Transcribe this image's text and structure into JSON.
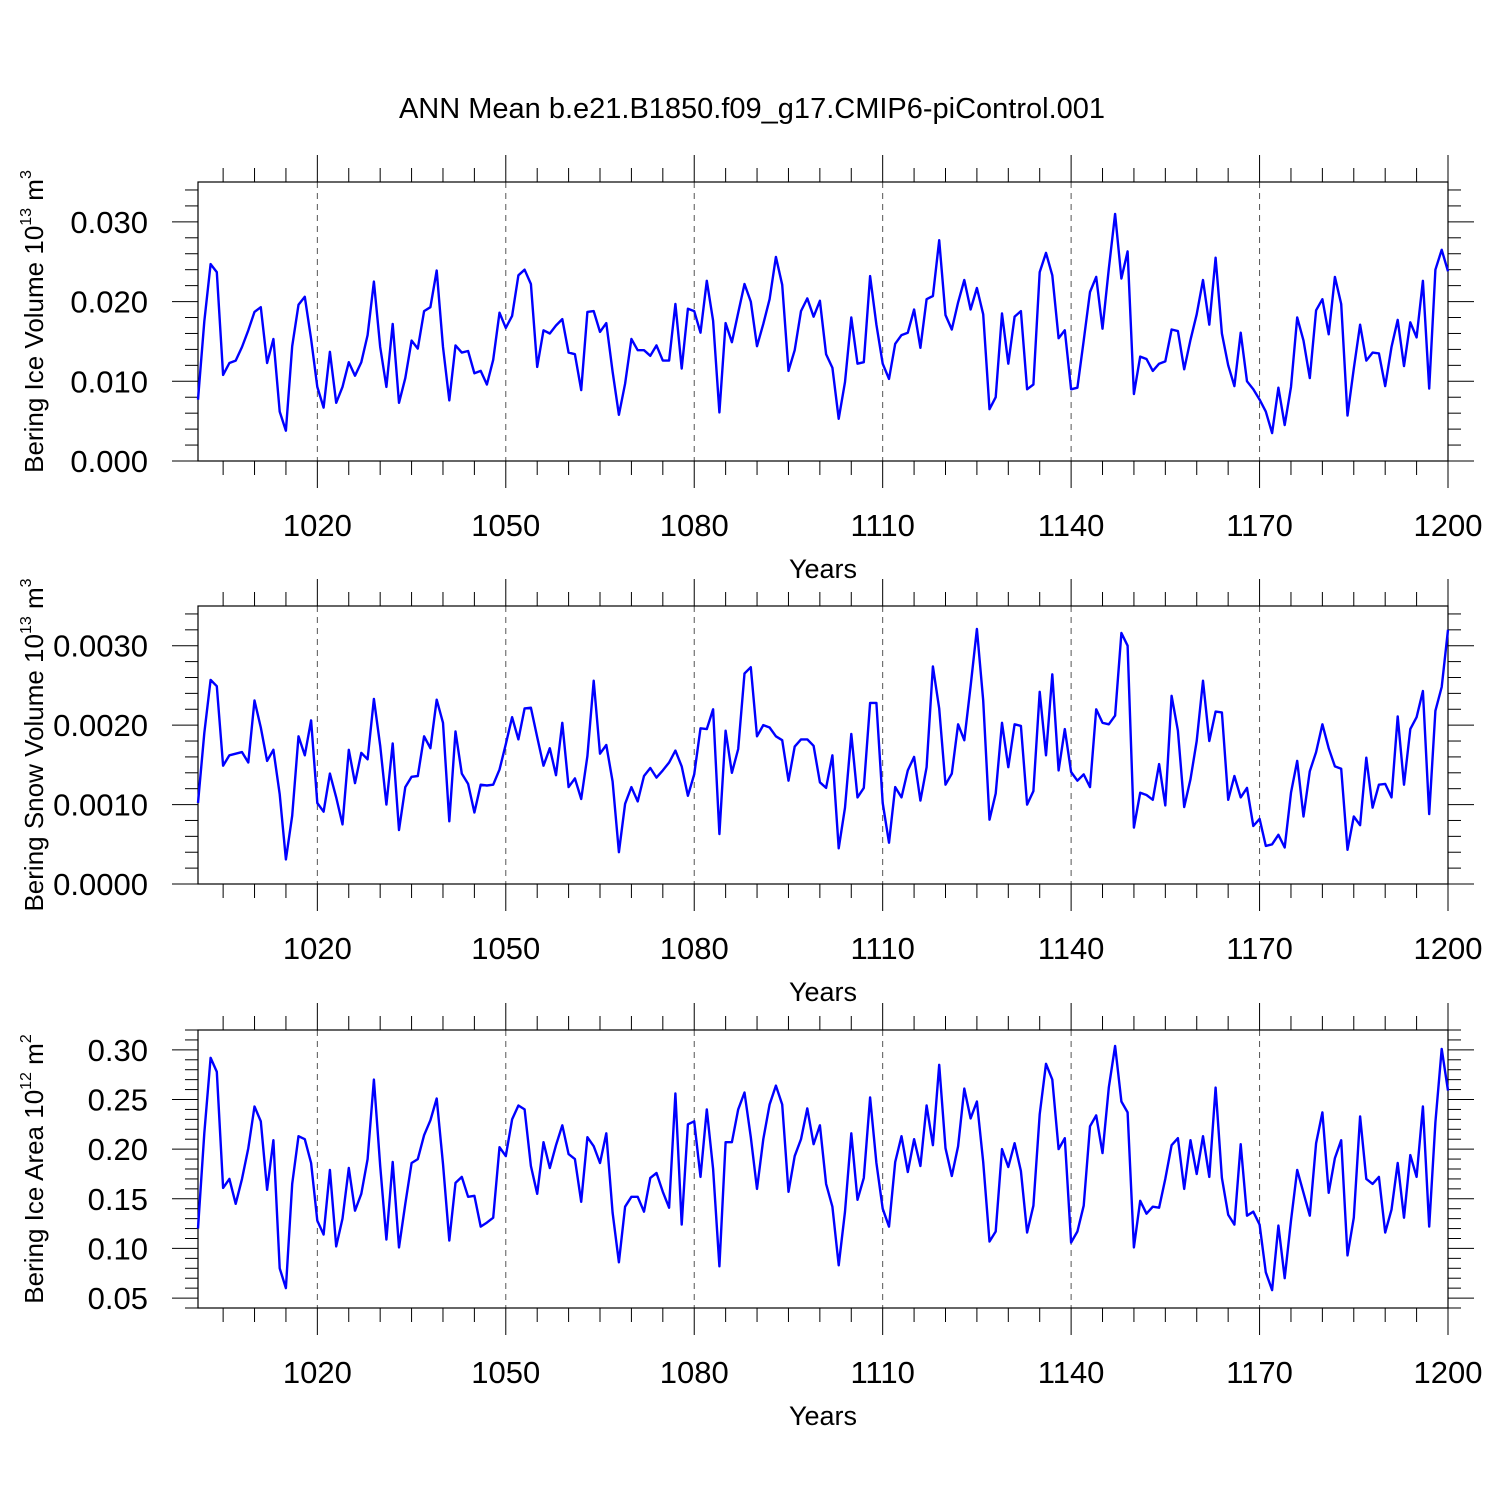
{
  "title": "ANN Mean b.e21.B1850.f09_g17.CMIP6-piControl.001",
  "colors": {
    "line": "#0000ff",
    "axis": "#000000",
    "grid": "#555555"
  },
  "chart_data": [
    {
      "type": "line",
      "name": "ice-volume",
      "ylabel_main": "Bering Ice Volume 10",
      "ylabel_exp": "13",
      "ylabel_tail": " m",
      "ylabel_unit_exp": "3",
      "xlabel": "Years",
      "xlim": [
        1001,
        1200
      ],
      "ylim": [
        0.0,
        0.035
      ],
      "xticks": [
        1020,
        1050,
        1080,
        1110,
        1140,
        1170,
        1200
      ],
      "xtick_labels": [
        "1020",
        "1050",
        "1080",
        "1110",
        "1140",
        "1170",
        "1200"
      ],
      "yticks": [
        0.0,
        0.01,
        0.02,
        0.03
      ],
      "ytick_labels": [
        "0.000",
        "0.010",
        "0.020",
        "0.030"
      ],
      "grid_x": [
        1020,
        1050,
        1080,
        1110,
        1140,
        1170
      ],
      "x_start": 1001,
      "values": [
        0.0077,
        0.0175,
        0.0247,
        0.0237,
        0.0108,
        0.0123,
        0.0126,
        0.0143,
        0.0164,
        0.0187,
        0.0193,
        0.0123,
        0.0153,
        0.0062,
        0.0038,
        0.0144,
        0.0196,
        0.0206,
        0.0153,
        0.0093,
        0.0067,
        0.0137,
        0.0073,
        0.0093,
        0.0124,
        0.0107,
        0.0124,
        0.0158,
        0.0225,
        0.0143,
        0.0093,
        0.0172,
        0.0073,
        0.0104,
        0.0151,
        0.0141,
        0.0188,
        0.0193,
        0.0239,
        0.0143,
        0.0076,
        0.0145,
        0.0136,
        0.0138,
        0.011,
        0.0113,
        0.0096,
        0.0127,
        0.0186,
        0.0167,
        0.0182,
        0.0233,
        0.024,
        0.0222,
        0.0118,
        0.0164,
        0.016,
        0.017,
        0.0178,
        0.0136,
        0.0134,
        0.0089,
        0.0187,
        0.0188,
        0.0162,
        0.0173,
        0.0112,
        0.0058,
        0.0097,
        0.0153,
        0.0139,
        0.0139,
        0.0132,
        0.0145,
        0.0126,
        0.0126,
        0.0197,
        0.0116,
        0.0191,
        0.0188,
        0.0161,
        0.0226,
        0.0176,
        0.0061,
        0.0173,
        0.0149,
        0.0186,
        0.0222,
        0.02,
        0.0144,
        0.0172,
        0.0203,
        0.0256,
        0.0221,
        0.0113,
        0.0139,
        0.0188,
        0.0204,
        0.0181,
        0.0201,
        0.0134,
        0.0117,
        0.0053,
        0.0099,
        0.018,
        0.0122,
        0.0124,
        0.0232,
        0.0171,
        0.0122,
        0.0103,
        0.0147,
        0.0158,
        0.0161,
        0.019,
        0.0142,
        0.0203,
        0.0207,
        0.0277,
        0.0183,
        0.0165,
        0.0199,
        0.0227,
        0.019,
        0.0217,
        0.0184,
        0.0065,
        0.008,
        0.0185,
        0.0122,
        0.0181,
        0.0188,
        0.009,
        0.0096,
        0.0237,
        0.0261,
        0.0233,
        0.0154,
        0.0164,
        0.009,
        0.0092,
        0.0151,
        0.0212,
        0.0231,
        0.0166,
        0.0241,
        0.031,
        0.0229,
        0.0263,
        0.0084,
        0.0131,
        0.0128,
        0.0113,
        0.0122,
        0.0125,
        0.0165,
        0.0163,
        0.0115,
        0.0152,
        0.0184,
        0.0227,
        0.0171,
        0.0255,
        0.016,
        0.012,
        0.0094,
        0.0161,
        0.01,
        0.009,
        0.0077,
        0.0062,
        0.0035,
        0.0092,
        0.0045,
        0.0093,
        0.018,
        0.0151,
        0.0104,
        0.0189,
        0.0203,
        0.0159,
        0.0231,
        0.0197,
        0.0057,
        0.0116,
        0.0171,
        0.0126,
        0.0136,
        0.0135,
        0.0094,
        0.0143,
        0.0177,
        0.0119,
        0.0174,
        0.0155,
        0.0226,
        0.0091,
        0.024,
        0.0265,
        0.0238
      ]
    },
    {
      "type": "line",
      "name": "snow-volume",
      "ylabel_main": "Bering Snow Volume 10",
      "ylabel_exp": "13",
      "ylabel_tail": " m",
      "ylabel_unit_exp": "3",
      "xlabel": "Years",
      "xlim": [
        1001,
        1200
      ],
      "ylim": [
        0.0,
        0.0035
      ],
      "xticks": [
        1020,
        1050,
        1080,
        1110,
        1140,
        1170,
        1200
      ],
      "xtick_labels": [
        "1020",
        "1050",
        "1080",
        "1110",
        "1140",
        "1170",
        "1200"
      ],
      "yticks": [
        0.0,
        0.001,
        0.002,
        0.003
      ],
      "ytick_labels": [
        "0.0000",
        "0.0010",
        "0.0020",
        "0.0030"
      ],
      "grid_x": [
        1020,
        1050,
        1080,
        1110,
        1140,
        1170
      ],
      "x_start": 1001,
      "values": [
        0.00102,
        0.0019,
        0.00257,
        0.00249,
        0.00149,
        0.00162,
        0.00164,
        0.00166,
        0.00153,
        0.00231,
        0.00197,
        0.00155,
        0.00169,
        0.00113,
        0.00031,
        0.00086,
        0.00186,
        0.00162,
        0.00206,
        0.00102,
        0.00091,
        0.00139,
        0.00109,
        0.00075,
        0.00169,
        0.00127,
        0.00165,
        0.00157,
        0.00233,
        0.00174,
        0.001,
        0.00177,
        0.00068,
        0.00122,
        0.00135,
        0.00136,
        0.00186,
        0.00171,
        0.00232,
        0.00203,
        0.00079,
        0.00192,
        0.00139,
        0.00126,
        0.0009,
        0.00125,
        0.00124,
        0.00125,
        0.00144,
        0.00176,
        0.0021,
        0.00182,
        0.00221,
        0.00222,
        0.00185,
        0.00149,
        0.00171,
        0.00137,
        0.00203,
        0.00122,
        0.00133,
        0.00107,
        0.00161,
        0.00256,
        0.00164,
        0.00175,
        0.00129,
        0.0004,
        0.00101,
        0.00122,
        0.00104,
        0.00136,
        0.00146,
        0.00134,
        0.00143,
        0.00153,
        0.00168,
        0.00148,
        0.00111,
        0.00138,
        0.00196,
        0.00195,
        0.0022,
        0.00063,
        0.00193,
        0.0014,
        0.0017,
        0.00265,
        0.00273,
        0.00186,
        0.002,
        0.00197,
        0.00186,
        0.00181,
        0.0013,
        0.00173,
        0.00182,
        0.00182,
        0.00174,
        0.00128,
        0.00121,
        0.00162,
        0.00045,
        0.00096,
        0.00189,
        0.00109,
        0.00121,
        0.00228,
        0.00228,
        0.00102,
        0.00052,
        0.00122,
        0.00109,
        0.00143,
        0.0016,
        0.00105,
        0.00147,
        0.00274,
        0.00221,
        0.00125,
        0.00139,
        0.00201,
        0.00181,
        0.00249,
        0.00321,
        0.00231,
        0.00081,
        0.00114,
        0.00203,
        0.00147,
        0.00201,
        0.00199,
        0.001,
        0.00117,
        0.00242,
        0.00162,
        0.00264,
        0.00143,
        0.00195,
        0.00141,
        0.0013,
        0.00138,
        0.00122,
        0.0022,
        0.00203,
        0.00201,
        0.00212,
        0.00316,
        0.003,
        0.00071,
        0.00115,
        0.00112,
        0.00106,
        0.00151,
        0.00099,
        0.00237,
        0.00193,
        0.00097,
        0.00132,
        0.0018,
        0.00256,
        0.0018,
        0.00217,
        0.00216,
        0.00106,
        0.00136,
        0.00109,
        0.00121,
        0.00073,
        0.00082,
        0.00048,
        0.0005,
        0.00062,
        0.00046,
        0.00115,
        0.00155,
        0.00085,
        0.00142,
        0.00166,
        0.00201,
        0.00171,
        0.00148,
        0.00145,
        0.00043,
        0.00085,
        0.00074,
        0.00159,
        0.00096,
        0.00125,
        0.00126,
        0.00109,
        0.00211,
        0.00125,
        0.00195,
        0.0021,
        0.00243,
        0.00088,
        0.00218,
        0.00248,
        0.0032
      ]
    },
    {
      "type": "line",
      "name": "ice-area",
      "ylabel_main": "Bering Ice Area 10",
      "ylabel_exp": "12",
      "ylabel_tail": " m",
      "ylabel_unit_exp": "2",
      "xlabel": "Years",
      "xlim": [
        1001,
        1200
      ],
      "ylim": [
        0.04,
        0.32
      ],
      "xticks": [
        1020,
        1050,
        1080,
        1110,
        1140,
        1170,
        1200
      ],
      "xtick_labels": [
        "1020",
        "1050",
        "1080",
        "1110",
        "1140",
        "1170",
        "1200"
      ],
      "yticks": [
        0.05,
        0.1,
        0.15,
        0.2,
        0.25,
        0.3
      ],
      "ytick_labels": [
        "0.05",
        "0.10",
        "0.15",
        "0.20",
        "0.25",
        "0.30"
      ],
      "grid_x": [
        1020,
        1050,
        1080,
        1110,
        1140,
        1170
      ],
      "x_start": 1001,
      "values": [
        0.12,
        0.216,
        0.292,
        0.278,
        0.161,
        0.17,
        0.145,
        0.17,
        0.201,
        0.243,
        0.228,
        0.159,
        0.209,
        0.08,
        0.06,
        0.165,
        0.213,
        0.21,
        0.186,
        0.128,
        0.114,
        0.179,
        0.102,
        0.13,
        0.181,
        0.138,
        0.155,
        0.19,
        0.27,
        0.183,
        0.109,
        0.187,
        0.101,
        0.145,
        0.186,
        0.19,
        0.214,
        0.229,
        0.251,
        0.185,
        0.108,
        0.166,
        0.172,
        0.152,
        0.153,
        0.122,
        0.126,
        0.131,
        0.202,
        0.193,
        0.23,
        0.244,
        0.24,
        0.183,
        0.155,
        0.207,
        0.181,
        0.204,
        0.224,
        0.195,
        0.19,
        0.147,
        0.212,
        0.203,
        0.186,
        0.216,
        0.136,
        0.086,
        0.142,
        0.152,
        0.152,
        0.137,
        0.171,
        0.176,
        0.157,
        0.141,
        0.256,
        0.124,
        0.225,
        0.228,
        0.172,
        0.24,
        0.18,
        0.082,
        0.207,
        0.207,
        0.24,
        0.257,
        0.212,
        0.16,
        0.21,
        0.245,
        0.264,
        0.245,
        0.157,
        0.193,
        0.21,
        0.241,
        0.205,
        0.224,
        0.165,
        0.142,
        0.083,
        0.137,
        0.216,
        0.149,
        0.171,
        0.252,
        0.186,
        0.14,
        0.122,
        0.187,
        0.213,
        0.177,
        0.21,
        0.183,
        0.244,
        0.204,
        0.285,
        0.201,
        0.173,
        0.203,
        0.261,
        0.231,
        0.248,
        0.187,
        0.107,
        0.117,
        0.2,
        0.182,
        0.206,
        0.178,
        0.116,
        0.143,
        0.235,
        0.286,
        0.27,
        0.2,
        0.211,
        0.106,
        0.117,
        0.143,
        0.223,
        0.234,
        0.196,
        0.262,
        0.304,
        0.248,
        0.237,
        0.101,
        0.148,
        0.135,
        0.142,
        0.141,
        0.17,
        0.204,
        0.211,
        0.16,
        0.209,
        0.175,
        0.213,
        0.172,
        0.262,
        0.171,
        0.134,
        0.124,
        0.205,
        0.133,
        0.137,
        0.124,
        0.076,
        0.058,
        0.123,
        0.07,
        0.128,
        0.179,
        0.156,
        0.133,
        0.206,
        0.237,
        0.156,
        0.191,
        0.209,
        0.093,
        0.131,
        0.233,
        0.17,
        0.165,
        0.172,
        0.116,
        0.139,
        0.186,
        0.131,
        0.194,
        0.172,
        0.243,
        0.122,
        0.227,
        0.301,
        0.259
      ]
    }
  ]
}
